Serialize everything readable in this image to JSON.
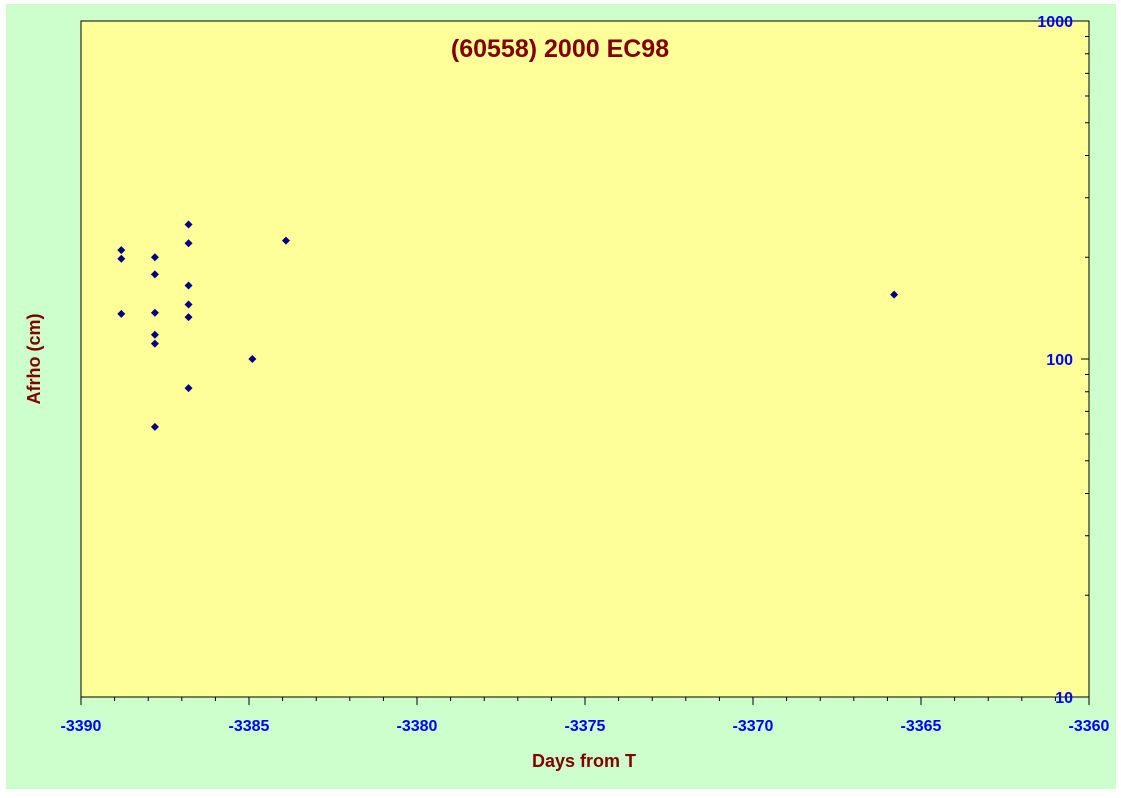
{
  "colors": {
    "outer_bg": "#CCFFCC",
    "plot_bg": "#FFFF99",
    "title": "#800000",
    "axis_label": "#800000",
    "tick_label": "#0000FF",
    "marker": "#000080",
    "axis_line": "#000000"
  },
  "chart_data": {
    "type": "scatter",
    "title": "(60558) 2000 EC98",
    "xlabel": "Days from T",
    "ylabel": "Afrho (cm)",
    "xlim": [
      -3390,
      -3360
    ],
    "ylim": [
      10,
      1000
    ],
    "yscale": "log",
    "grid": false,
    "legend": "none",
    "marker": "diamond",
    "x_ticks": [
      -3390,
      -3385,
      -3380,
      -3375,
      -3370,
      -3365,
      -3360
    ],
    "x_tick_labels": [
      "-3390",
      "-3385",
      "-3380",
      "-3375",
      "-3370",
      "-3365",
      "-3360"
    ],
    "y_ticks": [
      10,
      100,
      1000
    ],
    "y_tick_labels": [
      "10",
      "100",
      "1000"
    ],
    "y_axis_side": "right",
    "series": [
      {
        "points": [
          [
            -3388.8,
            210
          ],
          [
            -3388.8,
            198
          ],
          [
            -3388.8,
            136
          ],
          [
            -3387.8,
            200
          ],
          [
            -3387.8,
            178
          ],
          [
            -3387.8,
            137
          ],
          [
            -3387.8,
            118
          ],
          [
            -3387.8,
            111
          ],
          [
            -3387.8,
            63
          ],
          [
            -3386.8,
            250
          ],
          [
            -3386.8,
            220
          ],
          [
            -3386.8,
            165
          ],
          [
            -3386.8,
            145
          ],
          [
            -3386.8,
            133
          ],
          [
            -3386.8,
            82
          ],
          [
            -3384.9,
            100
          ],
          [
            -3383.9,
            224
          ],
          [
            -3365.8,
            155
          ]
        ]
      }
    ]
  }
}
